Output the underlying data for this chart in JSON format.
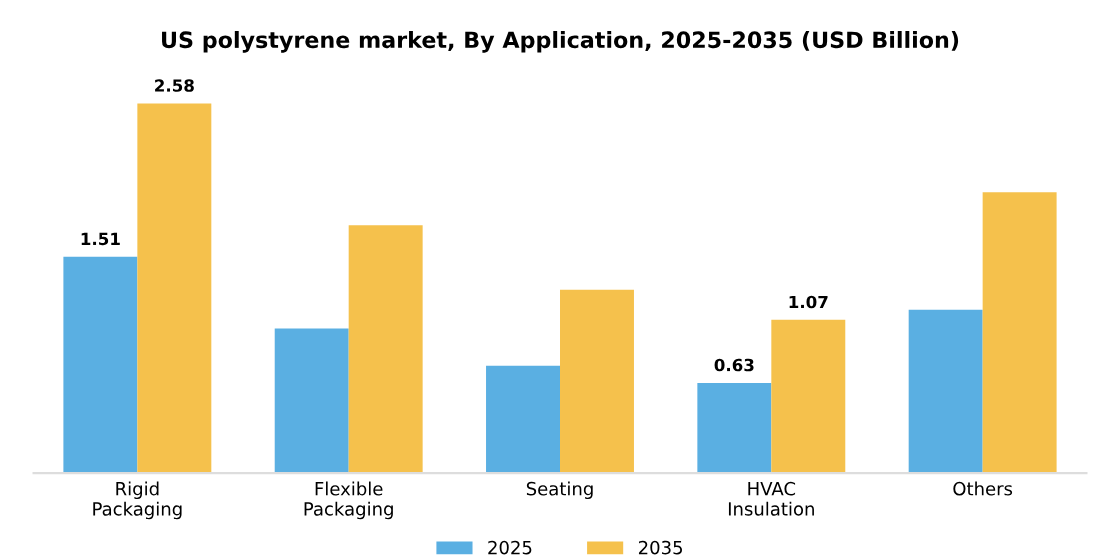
{
  "chart_data": {
    "type": "bar",
    "title": "US polystyrene market, By Application, 2025-2035 (USD Billion)",
    "categories": [
      "Rigid\nPackaging",
      "Flexible\nPackaging",
      "Seating",
      "HVAC\nInsulation",
      "Others"
    ],
    "series": [
      {
        "name": "2025",
        "color": "#5aafe2",
        "values": [
          1.51,
          1.01,
          0.75,
          0.63,
          1.14
        ],
        "value_labels": [
          "1.51",
          null,
          null,
          "0.63",
          null
        ]
      },
      {
        "name": "2035",
        "color": "#f5c14c",
        "values": [
          2.58,
          1.73,
          1.28,
          1.07,
          1.96
        ],
        "value_labels": [
          "2.58",
          null,
          null,
          "1.07",
          null
        ]
      }
    ],
    "legend": "bottom",
    "grid": false
  }
}
